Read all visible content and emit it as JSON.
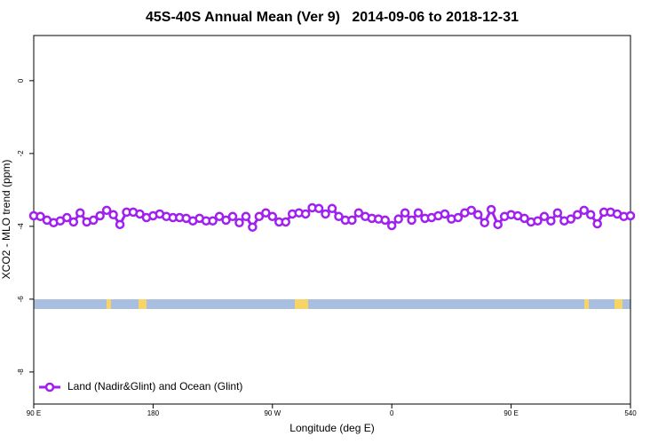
{
  "chart_data": {
    "type": "line",
    "title": "45S-40S Annual Mean (Ver 9)   2014-09-06 to 2018-12-31",
    "x_label": "Longitude (deg E)",
    "y_label": "XCO2 - MLO trend (ppm)",
    "x": [
      90,
      95,
      100,
      105,
      110,
      115,
      120,
      125,
      130,
      135,
      140,
      145,
      150,
      155,
      160,
      165,
      170,
      175,
      180,
      185,
      190,
      195,
      200,
      205,
      210,
      215,
      220,
      225,
      230,
      235,
      240,
      245,
      250,
      255,
      260,
      265,
      270,
      275,
      280,
      285,
      290,
      295,
      300,
      305,
      310,
      315,
      320,
      325,
      330,
      335,
      340,
      345,
      350,
      355,
      360,
      365,
      370,
      375,
      380,
      385,
      390,
      395,
      400,
      405,
      410,
      415,
      420,
      425,
      430,
      435,
      440,
      445,
      450,
      455,
      460,
      465,
      470,
      475,
      480,
      485,
      490,
      495,
      500,
      505,
      510,
      515,
      520,
      525,
      530,
      535,
      540
    ],
    "series": [
      {
        "name": "Land (Nadir&Glint) and Ocean (Glint)",
        "color": "#a020f0",
        "values": [
          -3.71,
          -3.73,
          -3.83,
          -3.9,
          -3.85,
          -3.76,
          -3.88,
          -3.63,
          -3.88,
          -3.83,
          -3.71,
          -3.56,
          -3.68,
          -3.95,
          -3.61,
          -3.61,
          -3.66,
          -3.76,
          -3.71,
          -3.66,
          -3.73,
          -3.76,
          -3.76,
          -3.78,
          -3.85,
          -3.78,
          -3.85,
          -3.85,
          -3.73,
          -3.83,
          -3.73,
          -3.9,
          -3.73,
          -4.02,
          -3.73,
          -3.63,
          -3.73,
          -3.88,
          -3.88,
          -3.66,
          -3.63,
          -3.66,
          -3.49,
          -3.51,
          -3.66,
          -3.51,
          -3.73,
          -3.83,
          -3.83,
          -3.63,
          -3.73,
          -3.78,
          -3.8,
          -3.83,
          -3.98,
          -3.8,
          -3.63,
          -3.83,
          -3.63,
          -3.78,
          -3.76,
          -3.71,
          -3.66,
          -3.8,
          -3.76,
          -3.63,
          -3.56,
          -3.68,
          -3.9,
          -3.54,
          -3.95,
          -3.73,
          -3.68,
          -3.71,
          -3.78,
          -3.88,
          -3.85,
          -3.73,
          -3.85,
          -3.63,
          -3.85,
          -3.8,
          -3.68,
          -3.56,
          -3.68,
          -3.93,
          -3.61,
          -3.61,
          -3.66,
          -3.73,
          -3.71
        ]
      }
    ],
    "xlim": [
      90,
      540
    ],
    "xticks": [
      {
        "value": 90,
        "label": "90 E"
      },
      180,
      {
        "value": 270,
        "label": "90 W"
      },
      {
        "value": 360,
        "label": "0"
      },
      {
        "value": 450,
        "label": "90 E"
      },
      540
    ],
    "ylim": [
      -8.88,
      1.24
    ],
    "yticks": [
      0,
      -2,
      -4,
      -6,
      -8
    ],
    "legend": "bottom-left"
  }
}
